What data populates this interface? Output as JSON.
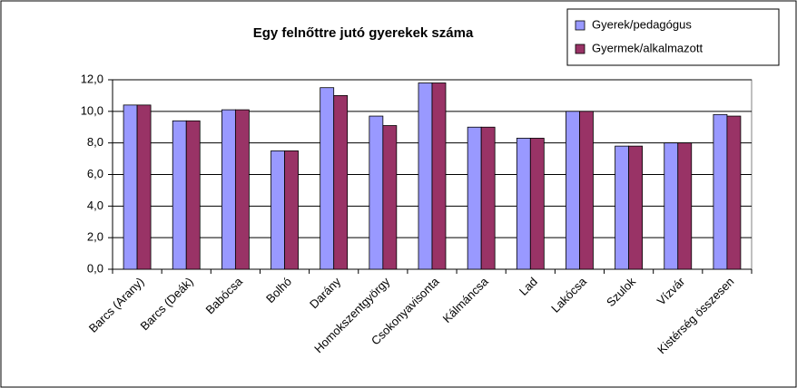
{
  "chart_data": {
    "type": "bar",
    "title": "Egy felnőttre jutó gyerekek száma",
    "categories": [
      "Barcs (Arany)",
      "Barcs (Deák)",
      "Babócsa",
      "Bolhó",
      "Darány",
      "Homokszentgyörgy",
      "Csokonyavisonta",
      "Kálmáncsa",
      "Lad",
      "Lakócsa",
      "Szulok",
      "Vízvár",
      "Kistérség összesen"
    ],
    "series": [
      {
        "name": "Gyerek/pedagógus",
        "color": "#9999ff",
        "values": [
          10.4,
          9.4,
          10.1,
          7.5,
          11.5,
          9.7,
          11.8,
          9.0,
          8.3,
          10.0,
          7.8,
          8.0,
          9.8
        ]
      },
      {
        "name": "Gyermek/alkalmazott",
        "color": "#993366",
        "values": [
          10.4,
          9.4,
          10.1,
          7.5,
          11.0,
          9.1,
          11.8,
          9.0,
          8.3,
          10.0,
          7.8,
          8.0,
          9.7
        ]
      }
    ],
    "ylim": [
      0,
      12
    ],
    "yticks": [
      {
        "value": 0,
        "label": "0,0"
      },
      {
        "value": 2,
        "label": "2,0"
      },
      {
        "value": 4,
        "label": "4,0"
      },
      {
        "value": 6,
        "label": "6,0"
      },
      {
        "value": 8,
        "label": "8,0"
      },
      {
        "value": 10,
        "label": "10,0"
      },
      {
        "value": 12,
        "label": "12,0"
      }
    ],
    "grid": true
  }
}
